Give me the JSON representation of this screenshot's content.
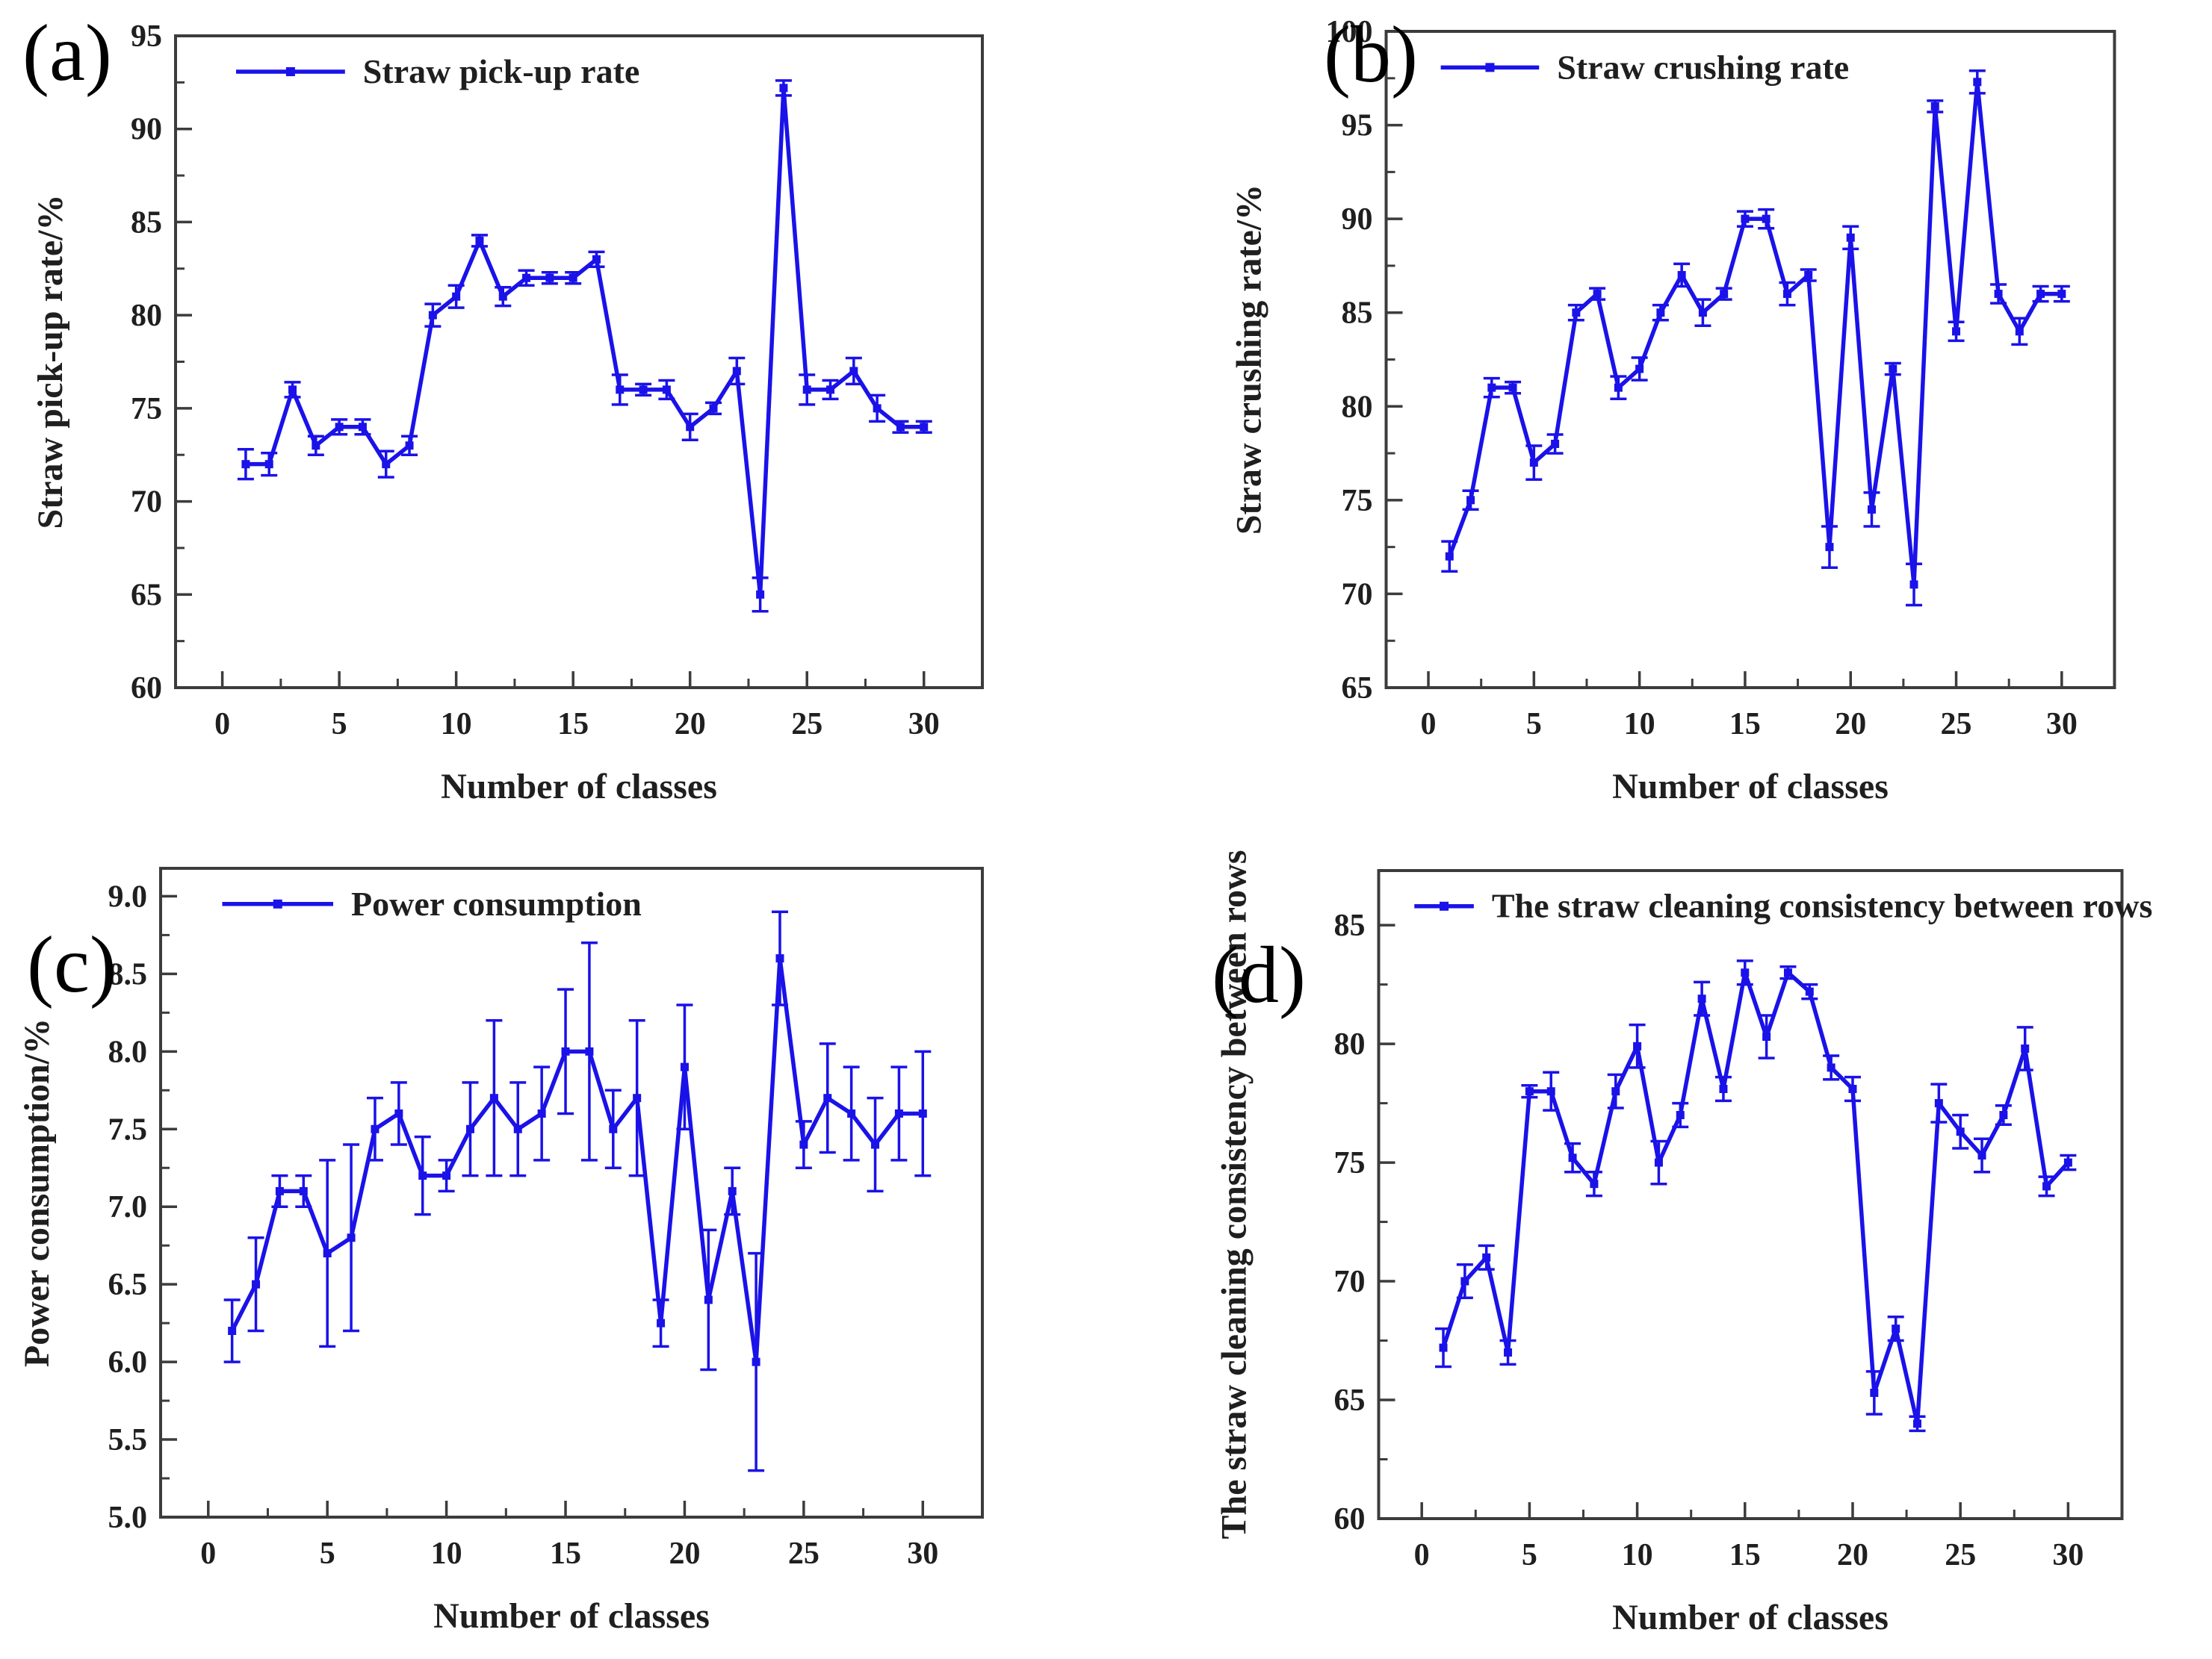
{
  "figure": {
    "background": "#ffffff",
    "series_color": "#1a12e8",
    "axis_color": "#3c3c3c",
    "text_color": "#1f1f1f"
  },
  "panels": [
    {
      "label": "(a)"
    },
    {
      "label": "(b)"
    },
    {
      "label": "(c)"
    },
    {
      "label": "(d)"
    }
  ],
  "chart_data": [
    {
      "type": "line",
      "panel": "a",
      "legend": "Straw pick-up rate",
      "xlabel": "Number of classes",
      "ylabel": "Straw pick-up rate/%",
      "line_color": "#1a12e8",
      "grid": false,
      "legend_position": "top-left",
      "x": [
        1,
        2,
        3,
        4,
        5,
        6,
        7,
        8,
        9,
        10,
        11,
        12,
        13,
        14,
        15,
        16,
        17,
        18,
        19,
        20,
        21,
        22,
        23,
        24,
        25,
        26,
        27,
        28,
        29,
        30
      ],
      "y": [
        72,
        72,
        76,
        73,
        74,
        74,
        72,
        73,
        80,
        81,
        84,
        81,
        82,
        82,
        82,
        83,
        76,
        76,
        76,
        74,
        75,
        77,
        65,
        92.2,
        76,
        76,
        77,
        75,
        74,
        74
      ],
      "yerr": [
        0.8,
        0.6,
        0.4,
        0.5,
        0.4,
        0.4,
        0.7,
        0.5,
        0.6,
        0.6,
        0.3,
        0.5,
        0.4,
        0.3,
        0.3,
        0.4,
        0.8,
        0.3,
        0.5,
        0.7,
        0.3,
        0.7,
        0.9,
        0.4,
        0.8,
        0.5,
        0.7,
        0.7,
        0.3,
        0.3
      ],
      "xlim": [
        -2,
        32.5
      ],
      "ylim": [
        60,
        95
      ],
      "xticks": [
        0,
        5,
        10,
        15,
        20,
        25,
        30
      ],
      "yticks": [
        60,
        65,
        70,
        75,
        80,
        85,
        90,
        95
      ],
      "minor_x_step": 2.5,
      "minor_y_step": 2.5,
      "ytick_decimals": 0
    },
    {
      "type": "line",
      "panel": "b",
      "legend": "Straw crushing rate",
      "xlabel": "Number of classes",
      "ylabel": "Straw crushing rate/%",
      "line_color": "#1a12e8",
      "grid": false,
      "legend_position": "top-left",
      "x": [
        1,
        2,
        3,
        4,
        5,
        6,
        7,
        8,
        9,
        10,
        11,
        12,
        13,
        14,
        15,
        16,
        17,
        18,
        19,
        20,
        21,
        22,
        23,
        24,
        25,
        26,
        27,
        28,
        29,
        30
      ],
      "y": [
        72,
        75,
        81,
        81,
        77,
        78,
        85,
        86,
        81,
        82,
        85,
        87,
        85,
        86,
        90,
        90,
        86,
        87,
        72.5,
        89,
        74.5,
        82,
        70.5,
        96,
        84,
        97.3,
        86,
        84,
        86,
        86
      ],
      "yerr": [
        0.8,
        0.5,
        0.5,
        0.3,
        0.9,
        0.5,
        0.4,
        0.3,
        0.6,
        0.6,
        0.4,
        0.6,
        0.7,
        0.3,
        0.4,
        0.5,
        0.6,
        0.3,
        1.1,
        0.6,
        0.9,
        0.3,
        1.1,
        0.3,
        0.5,
        0.6,
        0.5,
        0.7,
        0.4,
        0.4
      ],
      "xlim": [
        -2,
        32.5
      ],
      "ylim": [
        65,
        100
      ],
      "xticks": [
        0,
        5,
        10,
        15,
        20,
        25,
        30
      ],
      "yticks": [
        65,
        70,
        75,
        80,
        85,
        90,
        95,
        100
      ],
      "minor_x_step": 2.5,
      "minor_y_step": 2.5,
      "ytick_decimals": 0
    },
    {
      "type": "line",
      "panel": "c",
      "legend": "Power consumption",
      "xlabel": "Number of classes",
      "ylabel": "Power consumption/%",
      "line_color": "#1a12e8",
      "grid": false,
      "legend_position": "top-left",
      "x": [
        1,
        2,
        3,
        4,
        5,
        6,
        7,
        8,
        9,
        10,
        11,
        12,
        13,
        14,
        15,
        16,
        17,
        18,
        19,
        20,
        21,
        22,
        23,
        24,
        25,
        26,
        27,
        28,
        29,
        30
      ],
      "y": [
        6.2,
        6.5,
        7.1,
        7.1,
        6.7,
        6.8,
        7.5,
        7.6,
        7.2,
        7.2,
        7.5,
        7.7,
        7.5,
        7.6,
        8.0,
        8.0,
        7.5,
        7.7,
        6.25,
        7.9,
        6.4,
        7.1,
        6.0,
        8.6,
        7.4,
        7.7,
        7.6,
        7.4,
        7.6,
        7.6
      ],
      "yerr": [
        0.2,
        0.3,
        0.1,
        0.1,
        0.6,
        0.6,
        0.2,
        0.2,
        0.25,
        0.1,
        0.3,
        0.5,
        0.3,
        0.3,
        0.4,
        0.7,
        0.25,
        0.5,
        0.15,
        0.4,
        0.45,
        0.15,
        0.7,
        0.3,
        0.15,
        0.35,
        0.3,
        0.3,
        0.3,
        0.4
      ],
      "xlim": [
        -2,
        32.5
      ],
      "ylim": [
        5.0,
        9.18
      ],
      "xticks": [
        0,
        5,
        10,
        15,
        20,
        25,
        30
      ],
      "yticks": [
        5.0,
        5.5,
        6.0,
        6.5,
        7.0,
        7.5,
        8.0,
        8.5,
        9.0
      ],
      "minor_x_step": 2.5,
      "minor_y_step": 0.25,
      "ytick_decimals": 1
    },
    {
      "type": "line",
      "panel": "d",
      "legend": "The straw cleaning consistency between rows",
      "xlabel": "Number of classes",
      "ylabel": "The straw cleaning consistency between rows",
      "line_color": "#1a12e8",
      "grid": false,
      "legend_position": "top-left",
      "x": [
        1,
        2,
        3,
        4,
        5,
        6,
        7,
        8,
        9,
        10,
        11,
        12,
        13,
        14,
        15,
        16,
        17,
        18,
        19,
        20,
        21,
        22,
        23,
        24,
        25,
        26,
        27,
        28,
        29,
        30
      ],
      "y": [
        67.2,
        70,
        71,
        67,
        78,
        78,
        75.2,
        74.1,
        78,
        79.9,
        75,
        77,
        81.9,
        78.1,
        83,
        80.3,
        83,
        82.2,
        79,
        78.1,
        65.3,
        68,
        64,
        77.5,
        76.3,
        75.3,
        77,
        79.8,
        74,
        75
      ],
      "yerr": [
        0.8,
        0.7,
        0.5,
        0.5,
        0.25,
        0.8,
        0.6,
        0.5,
        0.7,
        0.9,
        0.9,
        0.5,
        0.7,
        0.5,
        0.5,
        0.9,
        0.25,
        0.3,
        0.5,
        0.5,
        0.9,
        0.5,
        0.3,
        0.8,
        0.7,
        0.7,
        0.4,
        0.9,
        0.4,
        0.3
      ],
      "xlim": [
        -2,
        32.5
      ],
      "ylim": [
        60,
        87.3
      ],
      "xticks": [
        0,
        5,
        10,
        15,
        20,
        25,
        30
      ],
      "yticks": [
        60,
        65,
        70,
        75,
        80,
        85
      ],
      "minor_x_step": 2.5,
      "minor_y_step": 2.5,
      "ytick_decimals": 0
    }
  ]
}
